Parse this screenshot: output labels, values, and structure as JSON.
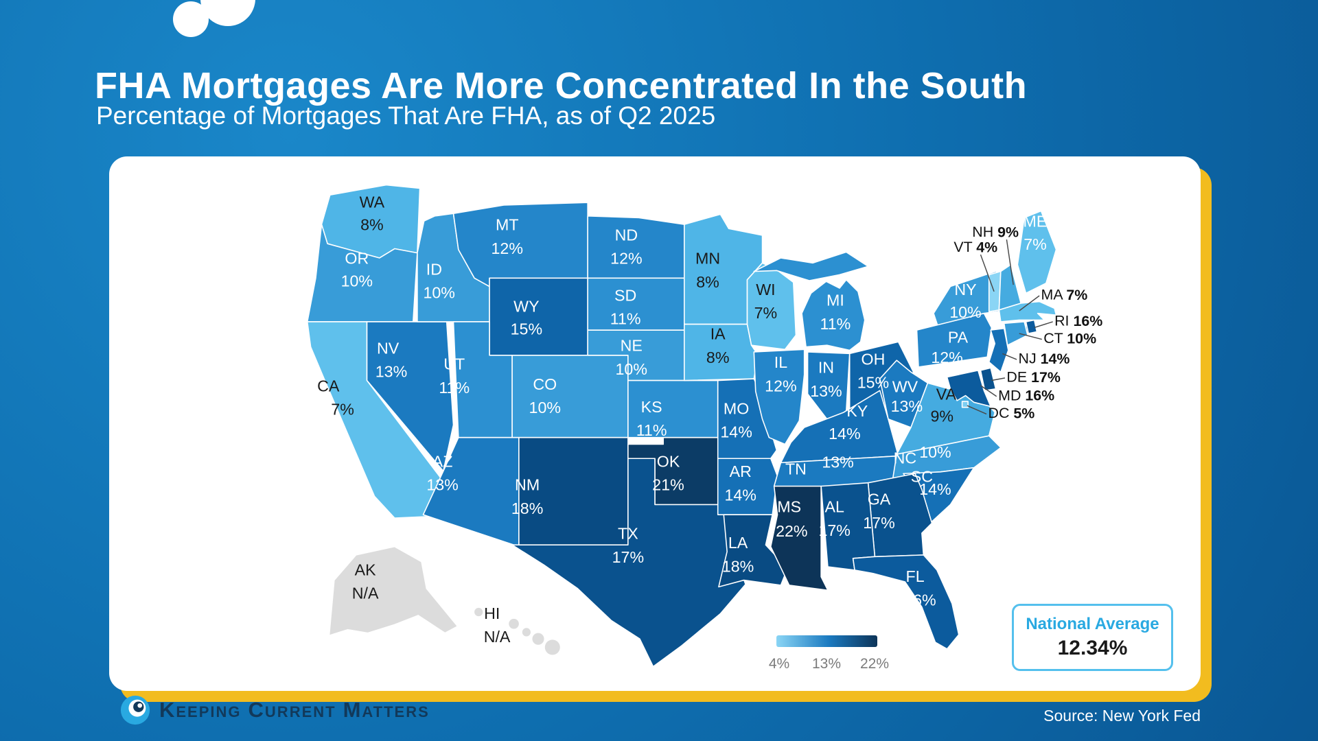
{
  "title": "FHA Mortgages Are More Concentrated In the South",
  "subtitle": "Percentage of Mortgages That Are FHA, as of Q2 2025",
  "source_label": "Source: New York Fed",
  "brand": {
    "words": [
      "Keeping",
      "Current",
      "Matters"
    ],
    "icon": "kcm-swirl-icon"
  },
  "national_average": {
    "label": "National Average",
    "value": "12.34%"
  },
  "legend": {
    "ticks": [
      "4%",
      "13%",
      "22%"
    ]
  },
  "colors": {
    "background": "#0E6DAE",
    "card_background": "#FFFFFF",
    "card_shadow": "#F2BC1F",
    "accent_blue": "#29A9E1",
    "box_border": "#54C0ED",
    "no_data_fill": "#DCDCDC",
    "legend_gradient": [
      "#8AD5F5",
      "#1B7AC0",
      "#0D3458"
    ],
    "title_text": "#FFFFFF",
    "legend_tick_text": "#7B7B7B"
  },
  "chart_data": {
    "type": "heatmap",
    "subtype": "us-state-choropleth",
    "title": "Percentage of Mortgages That Are FHA, as of Q2 2025",
    "unit": "percent",
    "national_average": 12.34,
    "legend_ticks": [
      4,
      13,
      22
    ],
    "legend_position": "bottom-center",
    "color_scale": [
      [
        4,
        "#8AD5F5"
      ],
      [
        7,
        "#5FC0EC"
      ],
      [
        8,
        "#4FB5E7"
      ],
      [
        9,
        "#45ABE0"
      ],
      [
        10,
        "#389CD8"
      ],
      [
        11,
        "#2C90D1"
      ],
      [
        12,
        "#2486CA"
      ],
      [
        13,
        "#1B7AC0"
      ],
      [
        14,
        "#1570B6"
      ],
      [
        15,
        "#0F65A9"
      ],
      [
        16,
        "#0C5B9D"
      ],
      [
        17,
        "#0A528E"
      ],
      [
        18,
        "#094B83"
      ],
      [
        21,
        "#0C3C66"
      ],
      [
        22,
        "#0D3458"
      ]
    ],
    "na_color": "#DCDCDC",
    "states": [
      {
        "abbr": "WA",
        "value": 8,
        "label": "8%"
      },
      {
        "abbr": "OR",
        "value": 10,
        "label": "10%"
      },
      {
        "abbr": "CA",
        "value": 7,
        "label": "7%"
      },
      {
        "abbr": "NV",
        "value": 13,
        "label": "13%"
      },
      {
        "abbr": "ID",
        "value": 10,
        "label": "10%"
      },
      {
        "abbr": "MT",
        "value": 12,
        "label": "12%"
      },
      {
        "abbr": "WY",
        "value": 15,
        "label": "15%"
      },
      {
        "abbr": "UT",
        "value": 11,
        "label": "11%"
      },
      {
        "abbr": "CO",
        "value": 10,
        "label": "10%"
      },
      {
        "abbr": "AZ",
        "value": 13,
        "label": "13%"
      },
      {
        "abbr": "NM",
        "value": 18,
        "label": "18%"
      },
      {
        "abbr": "ND",
        "value": 12,
        "label": "12%"
      },
      {
        "abbr": "SD",
        "value": 11,
        "label": "11%"
      },
      {
        "abbr": "NE",
        "value": 10,
        "label": "10%"
      },
      {
        "abbr": "KS",
        "value": 11,
        "label": "11%"
      },
      {
        "abbr": "OK",
        "value": 21,
        "label": "21%"
      },
      {
        "abbr": "TX",
        "value": 17,
        "label": "17%"
      },
      {
        "abbr": "MN",
        "value": 8,
        "label": "8%"
      },
      {
        "abbr": "IA",
        "value": 8,
        "label": "8%"
      },
      {
        "abbr": "MO",
        "value": 14,
        "label": "14%"
      },
      {
        "abbr": "AR",
        "value": 14,
        "label": "14%"
      },
      {
        "abbr": "LA",
        "value": 18,
        "label": "18%"
      },
      {
        "abbr": "WI",
        "value": 7,
        "label": "7%"
      },
      {
        "abbr": "IL",
        "value": 12,
        "label": "12%"
      },
      {
        "abbr": "IN",
        "value": 13,
        "label": "13%"
      },
      {
        "abbr": "MI",
        "value": 11,
        "label": "11%"
      },
      {
        "abbr": "OH",
        "value": 15,
        "label": "15%"
      },
      {
        "abbr": "KY",
        "value": 14,
        "label": "14%"
      },
      {
        "abbr": "TN",
        "value": 13,
        "label": "13%"
      },
      {
        "abbr": "WV",
        "value": 13,
        "label": "13%"
      },
      {
        "abbr": "VA",
        "value": 9,
        "label": "9%"
      },
      {
        "abbr": "NC",
        "value": 10,
        "label": "10%"
      },
      {
        "abbr": "SC",
        "value": 14,
        "label": "14%"
      },
      {
        "abbr": "GA",
        "value": 17,
        "label": "17%"
      },
      {
        "abbr": "AL",
        "value": 17,
        "label": "17%"
      },
      {
        "abbr": "MS",
        "value": 22,
        "label": "22%"
      },
      {
        "abbr": "FL",
        "value": 16,
        "label": "16%"
      },
      {
        "abbr": "NY",
        "value": 10,
        "label": "10%"
      },
      {
        "abbr": "PA",
        "value": 12,
        "label": "12%"
      },
      {
        "abbr": "NJ",
        "value": 14,
        "label": "14%"
      },
      {
        "abbr": "MD",
        "value": 16,
        "label": "16%"
      },
      {
        "abbr": "DE",
        "value": 17,
        "label": "17%"
      },
      {
        "abbr": "DC",
        "value": 5,
        "label": "5%"
      },
      {
        "abbr": "VT",
        "value": 4,
        "label": "4%"
      },
      {
        "abbr": "NH",
        "value": 9,
        "label": "9%"
      },
      {
        "abbr": "MA",
        "value": 7,
        "label": "7%"
      },
      {
        "abbr": "RI",
        "value": 16,
        "label": "16%"
      },
      {
        "abbr": "CT",
        "value": 10,
        "label": "10%"
      },
      {
        "abbr": "ME",
        "value": 7,
        "label": "7%"
      },
      {
        "abbr": "AK",
        "value": null,
        "label": "N/A"
      },
      {
        "abbr": "HI",
        "value": null,
        "label": "N/A"
      }
    ]
  }
}
